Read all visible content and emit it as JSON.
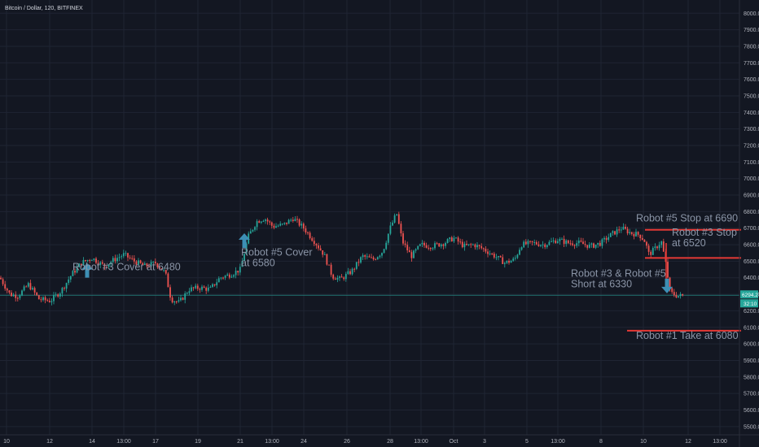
{
  "chart_data": {
    "type": "candlestick",
    "title": "Bitcoin / Dollar, 120, BITFINEX",
    "ylim": [
      5450,
      8080
    ],
    "y_ticks": [
      8000,
      7900,
      7800,
      7700,
      7600,
      7500,
      7400,
      7300,
      7200,
      7100,
      7000,
      6900,
      6800,
      6700,
      6600,
      6500,
      6400,
      6300,
      6200,
      6100,
      6000,
      5900,
      5800,
      5700,
      5600,
      5500
    ],
    "y_tick_labels": [
      "8000.0",
      "7900.0",
      "7800.0",
      "7700.0",
      "7600.0",
      "7500.0",
      "7400.0",
      "7300.0",
      "7200.0",
      "7100.0",
      "7000.0",
      "6900.0",
      "6800.0",
      "6700.0",
      "6600.0",
      "6500.0",
      "6400.0",
      "6300.0",
      "6200.0",
      "6100.0",
      "6000.0",
      "5900.0",
      "5800.0",
      "5700.0",
      "5600.0",
      "5500.0"
    ],
    "x_ticks": [
      "10",
      "12",
      "14",
      "13:00",
      "17",
      "19",
      "21",
      "13:00",
      "24",
      "26",
      "28",
      "13:00",
      "Oct",
      "3",
      "5",
      "13:00",
      "8",
      "10",
      "12",
      "13:00"
    ],
    "x_range": [
      0,
      920
    ],
    "x_tick_pos": [
      8,
      61,
      113,
      152,
      191,
      243,
      295,
      334,
      373,
      426,
      479,
      517,
      557,
      595,
      647,
      685,
      738,
      790,
      845,
      884
    ],
    "last_price": 6294.2,
    "last_price_label": "6294.2",
    "countdown_label": "32:10",
    "grid": true,
    "colors": {
      "background": "#131722",
      "up": "#26a69a",
      "down": "#ef5350",
      "grid": "#1f2433",
      "level": "#e53935",
      "arrow": "#3d8fb5",
      "annotation": "#8a94a6",
      "price_line": "#26a69a"
    },
    "anchors": [
      [
        0,
        6400
      ],
      [
        12,
        6300
      ],
      [
        22,
        6290
      ],
      [
        35,
        6360
      ],
      [
        48,
        6270
      ],
      [
        62,
        6260
      ],
      [
        75,
        6320
      ],
      [
        88,
        6420
      ],
      [
        100,
        6490
      ],
      [
        113,
        6520
      ],
      [
        128,
        6470
      ],
      [
        140,
        6510
      ],
      [
        152,
        6540
      ],
      [
        165,
        6500
      ],
      [
        178,
        6470
      ],
      [
        191,
        6490
      ],
      [
        203,
        6430
      ],
      [
        210,
        6270
      ],
      [
        220,
        6250
      ],
      [
        232,
        6330
      ],
      [
        245,
        6340
      ],
      [
        258,
        6330
      ],
      [
        270,
        6400
      ],
      [
        283,
        6420
      ],
      [
        295,
        6450
      ],
      [
        305,
        6650
      ],
      [
        315,
        6740
      ],
      [
        325,
        6760
      ],
      [
        335,
        6710
      ],
      [
        348,
        6720
      ],
      [
        360,
        6760
      ],
      [
        373,
        6700
      ],
      [
        386,
        6620
      ],
      [
        398,
        6540
      ],
      [
        408,
        6410
      ],
      [
        418,
        6390
      ],
      [
        432,
        6440
      ],
      [
        445,
        6530
      ],
      [
        458,
        6510
      ],
      [
        470,
        6560
      ],
      [
        479,
        6700
      ],
      [
        487,
        6790
      ],
      [
        494,
        6620
      ],
      [
        505,
        6530
      ],
      [
        517,
        6600
      ],
      [
        530,
        6590
      ],
      [
        545,
        6610
      ],
      [
        557,
        6640
      ],
      [
        570,
        6590
      ],
      [
        582,
        6600
      ],
      [
        595,
        6570
      ],
      [
        608,
        6530
      ],
      [
        620,
        6490
      ],
      [
        632,
        6510
      ],
      [
        640,
        6600
      ],
      [
        655,
        6610
      ],
      [
        668,
        6600
      ],
      [
        685,
        6630
      ],
      [
        698,
        6610
      ],
      [
        712,
        6610
      ],
      [
        725,
        6590
      ],
      [
        738,
        6610
      ],
      [
        750,
        6660
      ],
      [
        763,
        6700
      ],
      [
        775,
        6670
      ],
      [
        785,
        6660
      ],
      [
        792,
        6620
      ],
      [
        797,
        6540
      ],
      [
        805,
        6580
      ],
      [
        812,
        6620
      ],
      [
        817,
        6500
      ],
      [
        823,
        6310
      ],
      [
        832,
        6290
      ],
      [
        840,
        6290
      ]
    ],
    "levels": [
      {
        "price": 6690,
        "x1": 792,
        "x2": 910
      },
      {
        "price": 6520,
        "x1": 792,
        "x2": 910
      },
      {
        "price": 6080,
        "x1": 770,
        "x2": 910
      }
    ],
    "drop_line": {
      "x": 818,
      "from": 6610,
      "to": 6320
    },
    "arrows": [
      {
        "x": 107,
        "price": 6440,
        "dir": "up"
      },
      {
        "x": 300,
        "price": 6620,
        "dir": "up"
      },
      {
        "x": 819,
        "price": 6355,
        "dir": "down"
      }
    ],
    "annotations": [
      {
        "lines": [
          "Robot #3 Cover at 6480"
        ],
        "x": 89,
        "price": 6445
      },
      {
        "lines": [
          "Robot #5 Cover",
          "at 6580"
        ],
        "x": 296,
        "price": 6535
      },
      {
        "lines": [
          "Robot #5 Stop at 6690"
        ],
        "x": 781,
        "price": 6740
      },
      {
        "lines": [
          "Robot #3 Stop",
          "at 6520"
        ],
        "x": 825,
        "price": 6655
      },
      {
        "lines": [
          "Robot #3 & Robot #5",
          "Short at 6330"
        ],
        "x": 701,
        "price": 6405
      },
      {
        "lines": [
          "Robot #1 Take at 6080"
        ],
        "x": 781,
        "price": 6030
      }
    ]
  }
}
